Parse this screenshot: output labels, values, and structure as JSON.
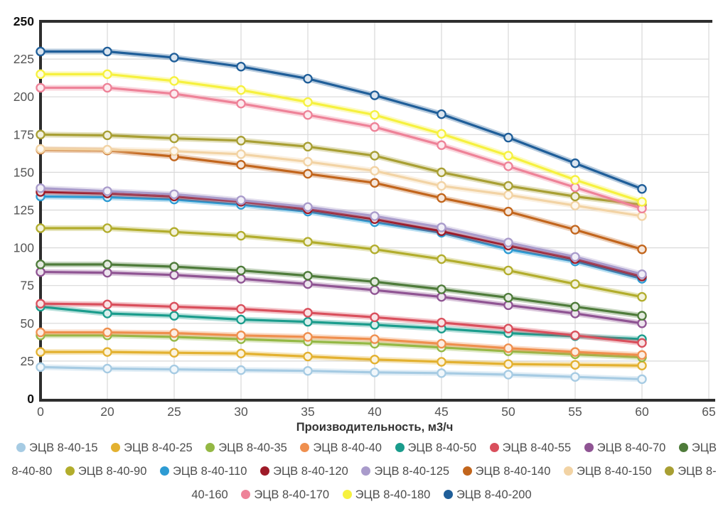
{
  "chart_data": {
    "type": "line",
    "title": "",
    "xlabel": "Производительность, м3/ч",
    "ylabel": "",
    "x_tick_labels": [
      "0",
      "20",
      "25",
      "30",
      "35",
      "40",
      "45",
      "50",
      "55",
      "60",
      "65"
    ],
    "categories": [
      0,
      20,
      25,
      30,
      35,
      40,
      45,
      50,
      55,
      60
    ],
    "y_ticks": [
      0,
      25,
      50,
      75,
      100,
      125,
      150,
      175,
      200,
      225,
      250
    ],
    "ylim": [
      0,
      250
    ],
    "grid": true,
    "legend_position": "bottom",
    "series": [
      {
        "name": "ЭЦВ 8-40-15",
        "color": "#a6cbe3",
        "values": [
          21,
          20,
          19.5,
          19,
          18.5,
          17.5,
          17,
          16,
          14.5,
          13
        ]
      },
      {
        "name": "ЭЦВ 8-40-25",
        "color": "#e3b130",
        "values": [
          31,
          31,
          30.5,
          30,
          28,
          26,
          24.5,
          23,
          22.5,
          22
        ]
      },
      {
        "name": "ЭЦВ 8-40-35",
        "color": "#94b844",
        "values": [
          42,
          42,
          41,
          39.5,
          38,
          36.5,
          34,
          31.5,
          29.5,
          27.5
        ]
      },
      {
        "name": "ЭЦВ 8-40-40",
        "color": "#ef8f4e",
        "values": [
          44,
          44,
          43.5,
          42,
          41,
          39.5,
          36.5,
          33.5,
          31,
          29
        ]
      },
      {
        "name": "ЭЦВ 8-40-50",
        "color": "#1a9c8c",
        "values": [
          61,
          56.5,
          55,
          52.5,
          51,
          49,
          46.5,
          43.5,
          41.5,
          39.5
        ]
      },
      {
        "name": "ЭЦВ 8-40-55",
        "color": "#d94f5c",
        "values": [
          63,
          62.5,
          61,
          59.5,
          57,
          54,
          50.5,
          46.5,
          42,
          37
        ]
      },
      {
        "name": "ЭЦВ 8-40-70",
        "color": "#8f5493",
        "values": [
          84,
          83.5,
          82,
          79.5,
          76,
          72,
          67.5,
          62,
          56.5,
          50
        ]
      },
      {
        "name": "ЭЦВ 8-40-80",
        "color": "#4e7b3a",
        "values": [
          89,
          89,
          87.5,
          85,
          81.5,
          77.5,
          72.5,
          67,
          61,
          55
        ]
      },
      {
        "name": "ЭЦВ 8-40-90",
        "color": "#b2ad2c",
        "values": [
          113,
          113,
          110.5,
          108,
          104,
          99,
          92.5,
          85,
          76,
          67.5
        ]
      },
      {
        "name": "ЭЦВ 8-40-110",
        "color": "#2d9bd3",
        "values": [
          134,
          133.5,
          132,
          128.5,
          124,
          117,
          110,
          99,
          91,
          79.5
        ]
      },
      {
        "name": "ЭЦВ 8-40-120",
        "color": "#9e1b28",
        "values": [
          137,
          136,
          134,
          130.5,
          125.5,
          119,
          111,
          101.5,
          92.5,
          81
        ]
      },
      {
        "name": "ЭЦВ 8-40-125",
        "color": "#a99bcb",
        "values": [
          139.5,
          137.5,
          135.5,
          131.5,
          127,
          121,
          113.5,
          103.5,
          94,
          82.5
        ]
      },
      {
        "name": "ЭЦВ 8-40-140",
        "color": "#c2651c",
        "values": [
          165,
          164.5,
          160.5,
          155,
          149,
          143,
          133,
          124,
          112,
          99
        ]
      },
      {
        "name": "ЭЦВ 8-40-150",
        "color": "#f2d3a4",
        "values": [
          165.5,
          165,
          164,
          162,
          157,
          151,
          141,
          135,
          128,
          121
        ]
      },
      {
        "name": "ЭЦВ 8-40-160",
        "color": "#a89f33",
        "values": [
          175,
          174.5,
          172.5,
          171,
          167,
          161,
          150,
          141,
          134,
          128.5
        ]
      },
      {
        "name": "ЭЦВ 8-40-170",
        "color": "#ee8298",
        "values": [
          206,
          206,
          202,
          195.5,
          188,
          180,
          168,
          154,
          140,
          126
        ]
      },
      {
        "name": "ЭЦВ 8-40-180",
        "color": "#f6f13e",
        "values": [
          215,
          215,
          210.5,
          204.5,
          196.5,
          188,
          175.5,
          161,
          145,
          130.5
        ]
      },
      {
        "name": "ЭЦВ 8-40-200",
        "color": "#1f5e99",
        "values": [
          230,
          230,
          226,
          220,
          212,
          201,
          188.5,
          173,
          156,
          139
        ]
      }
    ]
  }
}
